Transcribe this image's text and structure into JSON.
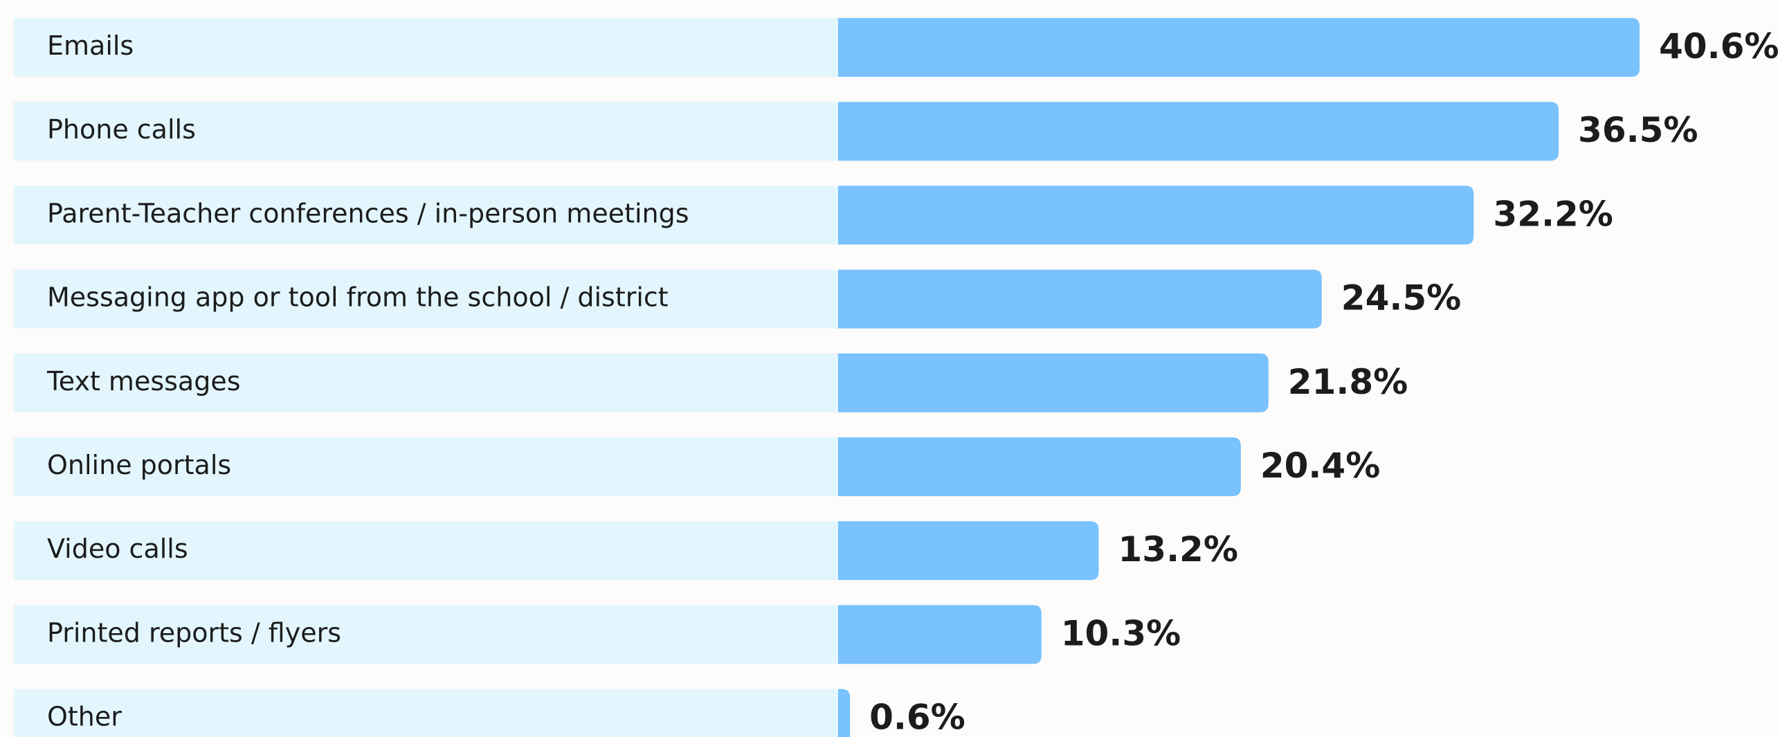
{
  "chart_data": {
    "type": "hbar",
    "categories": [
      "Emails",
      "Phone calls",
      "Parent-Teacher conferences / in-person meetings",
      "Messaging app or tool from the school / district",
      "Text messages",
      "Online portals",
      "Video calls",
      "Printed reports / flyers",
      "Other"
    ],
    "values": [
      40.6,
      36.5,
      32.2,
      24.5,
      21.8,
      20.4,
      13.2,
      10.3,
      0.6
    ],
    "value_labels": [
      "40.6%",
      "36.5%",
      "32.2%",
      "24.5%",
      "21.8%",
      "20.4%",
      "13.2%",
      "10.3%",
      "0.6%"
    ],
    "color": "#79c2fe"
  }
}
